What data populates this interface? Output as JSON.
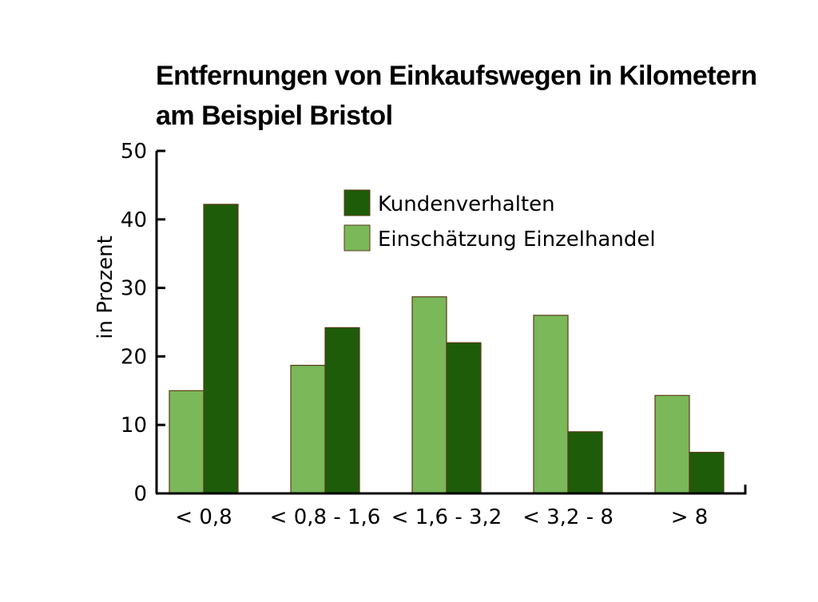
{
  "chart_data": {
    "type": "bar",
    "title_lines": [
      "Entfernungen von Einkaufswegen in Kilometern",
      "am Beispiel Bristol"
    ],
    "xlabel": "",
    "ylabel": "in Prozent",
    "ylim": [
      0,
      50
    ],
    "yticks": [
      "0",
      "10",
      "20",
      "30",
      "40",
      "50"
    ],
    "categories": [
      "< 0,8",
      "< 0,8 - 1,6",
      "< 1,6 - 3,2",
      "< 3,2 - 8",
      "> 8"
    ],
    "series": [
      {
        "name": "Einschätzung Einzelhandel",
        "color": "#7ab85a",
        "values": [
          15,
          18.7,
          28.7,
          26,
          14.3
        ]
      },
      {
        "name": "Kundenverhalten",
        "color": "#1e5c0a",
        "values": [
          42.2,
          24.2,
          22,
          9,
          6
        ]
      }
    ],
    "legend": {
      "placement": "top-center",
      "entries": [
        {
          "label": "Kundenverhalten",
          "color": "#1e5c0a"
        },
        {
          "label": "Einschätzung Einzelhandel",
          "color": "#7ab85a"
        }
      ]
    },
    "grid": false
  }
}
